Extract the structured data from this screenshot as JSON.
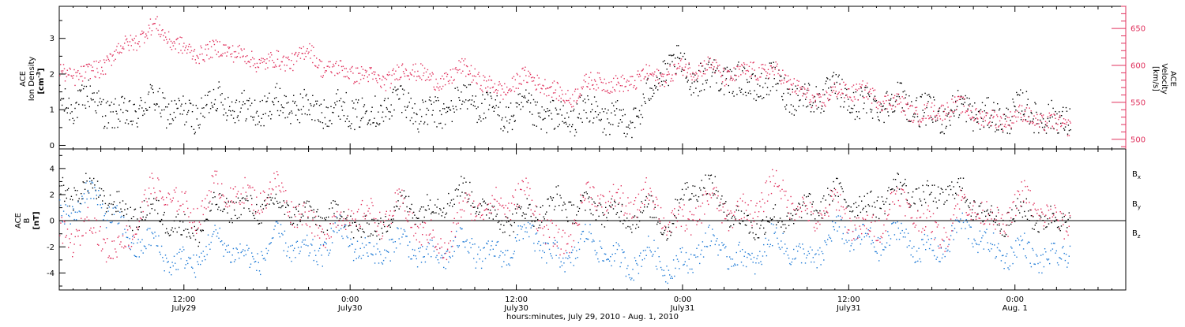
{
  "colors": {
    "density": "#000000",
    "velocity": "#e0315d",
    "bx": "#000000",
    "by": "#1e7ad6",
    "bz": "#e0315d",
    "frame": "#000000"
  },
  "time_axis": {
    "title": "hours:minutes, July 29, 2010 - Aug. 1, 2010",
    "ticks": [
      {
        "hours": 12,
        "label_time": "12:00",
        "label_date": "July29"
      },
      {
        "hours": 24,
        "label_time": "0:00",
        "label_date": "July30"
      },
      {
        "hours": 36,
        "label_time": "12:00",
        "label_date": "July30"
      },
      {
        "hours": 48,
        "label_time": "0:00",
        "label_date": "July31"
      },
      {
        "hours": 60,
        "label_time": "12:00",
        "label_date": "July31"
      },
      {
        "hours": 72,
        "label_time": "0:00",
        "label_date": "Aug. 1"
      }
    ]
  },
  "chart_data": [
    {
      "type": "scatter",
      "xlabel": "hours:minutes, July 29, 2010 - Aug. 1, 2010",
      "xlim": [
        3,
        80
      ],
      "ylabel": "ACE Ion Density [cm-3]",
      "ylabel_lines": [
        "ACE",
        "Ion Density"
      ],
      "ylabel_unit": "[cm",
      "ylabel_unit_sup": "-3",
      "ylim": [
        -0.1,
        3.9
      ],
      "yticks": [
        0,
        1,
        2,
        3
      ],
      "y2label_lines": [
        "ACE",
        "Velocity"
      ],
      "y2label_unit": "[km/s]",
      "y2lim": [
        487,
        680
      ],
      "y2ticks": [
        500,
        550,
        600,
        650
      ],
      "series": [
        {
          "name": "Ion Density",
          "axis": "left",
          "x": [
            3,
            5,
            7,
            9,
            11,
            13,
            15,
            17,
            19,
            21,
            23,
            25,
            27,
            29,
            31,
            33,
            35,
            37,
            39,
            41,
            43,
            45,
            46.5,
            47.5,
            48.5,
            50,
            52,
            54,
            56,
            58,
            60,
            62,
            64,
            66,
            68,
            70,
            72,
            74,
            76
          ],
          "values": [
            1.3,
            1.2,
            0.9,
            1.1,
            1.0,
            1.0,
            1.2,
            1.1,
            1.0,
            1.2,
            0.9,
            1.0,
            1.2,
            0.9,
            1.1,
            1.2,
            1.0,
            0.8,
            0.9,
            0.8,
            0.8,
            0.9,
            2.0,
            2.4,
            2.1,
            1.8,
            1.9,
            1.7,
            1.4,
            1.5,
            1.2,
            1.3,
            1.1,
            1.0,
            0.9,
            0.9,
            0.9,
            0.8,
            0.9
          ]
        },
        {
          "name": "Velocity",
          "axis": "right",
          "x": [
            3,
            4,
            5,
            6,
            7,
            8,
            9,
            10,
            11,
            12,
            13,
            14,
            15,
            16,
            17,
            18,
            19,
            20,
            21,
            22,
            23,
            24,
            25,
            26,
            27,
            28,
            29,
            30,
            31,
            32,
            33,
            34,
            35,
            36,
            37,
            38,
            39,
            40,
            41,
            42,
            43,
            44,
            45,
            46,
            47,
            48,
            49,
            50,
            51,
            52,
            53,
            54,
            55,
            56,
            57,
            58,
            59,
            60,
            61,
            62,
            63,
            64,
            65,
            66,
            67,
            68,
            69,
            70,
            71,
            72,
            73,
            74,
            75,
            76
          ],
          "values": [
            595,
            590,
            585,
            595,
            620,
            635,
            640,
            650,
            635,
            625,
            620,
            615,
            622,
            618,
            610,
            605,
            600,
            610,
            625,
            600,
            590,
            590,
            590,
            585,
            582,
            590,
            595,
            580,
            585,
            592,
            585,
            575,
            570,
            578,
            580,
            575,
            565,
            560,
            570,
            580,
            575,
            580,
            585,
            580,
            590,
            600,
            598,
            595,
            585,
            590,
            600,
            590,
            585,
            575,
            560,
            555,
            560,
            565,
            568,
            560,
            550,
            540,
            535,
            540,
            545,
            540,
            535,
            530,
            530,
            530,
            528,
            525,
            525,
            522
          ]
        }
      ]
    },
    {
      "type": "scatter",
      "xlabel": "hours:minutes, July 29, 2010 - Aug. 1, 2010",
      "xlim": [
        3,
        80
      ],
      "ylabel_lines": [
        "ACE",
        "B"
      ],
      "ylabel_unit": "[nT]",
      "ylim": [
        -5.3,
        5.5
      ],
      "yticks": [
        -4,
        -2,
        0,
        2,
        4
      ],
      "series": [
        {
          "name": "Bx",
          "label_main": "B",
          "label_sub": "x",
          "x": [
            3,
            5,
            7,
            9,
            11,
            13,
            15,
            17,
            19,
            21,
            23,
            25,
            27,
            29,
            31,
            33,
            35,
            37,
            39,
            41,
            43,
            45,
            47,
            48,
            49,
            51,
            53,
            55,
            57,
            59,
            61,
            63,
            65,
            67,
            69,
            71,
            73,
            75,
            76
          ],
          "values": [
            2.8,
            2.0,
            1.5,
            0.5,
            0.0,
            -0.5,
            1.0,
            1.5,
            0.5,
            1.0,
            0.0,
            -0.5,
            0.5,
            1.0,
            2.0,
            1.5,
            0.5,
            0.0,
            2.0,
            0.5,
            1.0,
            0.5,
            -0.5,
            2.5,
            3.0,
            1.0,
            0.0,
            -0.5,
            1.5,
            1.5,
            1.5,
            2.0,
            2.0,
            2.5,
            1.0,
            0.5,
            0.0,
            0.5,
            0.5
          ]
        },
        {
          "name": "By",
          "label_main": "B",
          "label_sub": "y",
          "x": [
            3,
            5,
            7,
            9,
            11,
            13,
            15,
            17,
            19,
            21,
            23,
            25,
            27,
            29,
            31,
            33,
            35,
            37,
            39,
            41,
            43,
            45,
            47,
            49,
            51,
            53,
            55,
            57,
            59,
            61,
            63,
            65,
            67,
            69,
            71,
            73,
            75,
            76
          ],
          "values": [
            1.0,
            1.5,
            0.5,
            -2.0,
            -3.0,
            -2.5,
            -2.0,
            -2.5,
            -2.0,
            -2.0,
            -1.5,
            -2.0,
            -2.0,
            -2.5,
            -2.0,
            -2.5,
            -2.0,
            -1.5,
            -2.5,
            -2.0,
            -2.5,
            -3.0,
            -3.5,
            -2.0,
            -2.5,
            -2.5,
            -2.0,
            -2.5,
            -1.5,
            -1.0,
            -1.5,
            -2.0,
            -1.5,
            -1.0,
            -2.0,
            -3.0,
            -2.5,
            -1.5
          ]
        },
        {
          "name": "Bz",
          "label_main": "B",
          "label_sub": "z",
          "x": [
            3,
            5,
            7,
            9,
            11,
            13,
            15,
            17,
            19,
            21,
            23,
            25,
            27,
            29,
            31,
            33,
            35,
            37,
            39,
            41,
            43,
            45,
            47,
            49,
            51,
            53,
            55,
            57,
            59,
            61,
            63,
            65,
            67,
            69,
            71,
            73,
            75,
            76
          ],
          "values": [
            -0.5,
            -1.0,
            -2.0,
            1.0,
            2.0,
            1.0,
            2.0,
            2.5,
            1.5,
            0.5,
            -1.0,
            1.0,
            0.5,
            -0.5,
            -1.5,
            1.0,
            2.0,
            1.0,
            -1.5,
            1.0,
            2.0,
            1.5,
            0.0,
            1.0,
            0.5,
            1.5,
            2.0,
            1.0,
            0.5,
            -0.5,
            1.0,
            0.5,
            -0.5,
            1.0,
            0.5,
            1.0,
            0.5,
            0.5
          ]
        }
      ]
    }
  ]
}
